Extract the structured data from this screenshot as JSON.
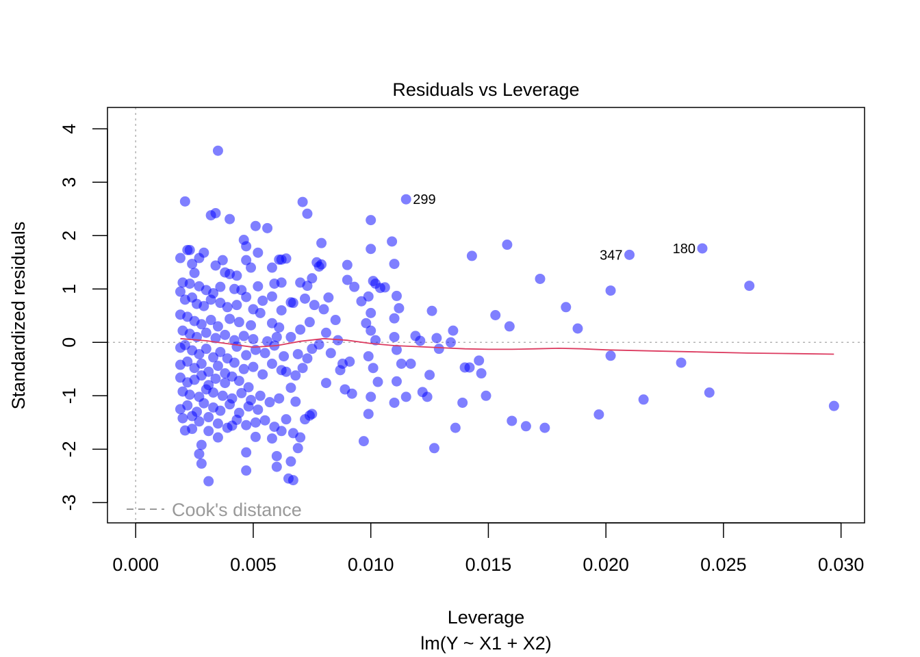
{
  "chart_data": {
    "type": "scatter",
    "title": "Residuals vs Leverage",
    "xlabel": "Leverage",
    "sublabel": "lm(Y ~ X1 + X2)",
    "ylabel": "Standardized residuals",
    "xlim": [
      -0.0012,
      0.031
    ],
    "ylim": [
      -3.38,
      4.4
    ],
    "xticks": [
      0.0,
      0.005,
      0.01,
      0.015,
      0.02,
      0.025,
      0.03
    ],
    "xtick_labels": [
      "0.000",
      "0.005",
      "0.010",
      "0.015",
      "0.020",
      "0.025",
      "0.030"
    ],
    "yticks": [
      -3,
      -2,
      -1,
      0,
      1,
      2,
      3,
      4
    ],
    "ytick_labels": [
      "-3",
      "-2",
      "-1",
      "0",
      "1",
      "2",
      "3",
      "4"
    ],
    "legend": {
      "label": "Cook's distance",
      "position": "bottom-left"
    },
    "reference_lines": {
      "horizontal_y": 0,
      "vertical_x": 0
    },
    "colors": {
      "points": "#0000ff",
      "smooth": "#dc3a5f",
      "reference": "#b3b3b3",
      "legend_text": "#999999"
    },
    "labeled_points": [
      {
        "label": "299",
        "x": 0.0115,
        "y": 2.68
      },
      {
        "label": "347",
        "x": 0.021,
        "y": 1.64
      },
      {
        "label": "180",
        "x": 0.0241,
        "y": 1.76
      }
    ],
    "smooth_line": [
      [
        0.0019,
        0.07
      ],
      [
        0.003,
        0.03
      ],
      [
        0.004,
        -0.03
      ],
      [
        0.005,
        -0.09
      ],
      [
        0.006,
        -0.06
      ],
      [
        0.007,
        0.02
      ],
      [
        0.008,
        0.07
      ],
      [
        0.009,
        0.04
      ],
      [
        0.01,
        -0.02
      ],
      [
        0.011,
        -0.06
      ],
      [
        0.012,
        -0.08
      ],
      [
        0.013,
        -0.1
      ],
      [
        0.014,
        -0.12
      ],
      [
        0.015,
        -0.13
      ],
      [
        0.016,
        -0.13
      ],
      [
        0.017,
        -0.12
      ],
      [
        0.018,
        -0.11
      ],
      [
        0.019,
        -0.12
      ],
      [
        0.02,
        -0.14
      ],
      [
        0.022,
        -0.16
      ],
      [
        0.024,
        -0.18
      ],
      [
        0.026,
        -0.2
      ],
      [
        0.028,
        -0.21
      ],
      [
        0.0297,
        -0.22
      ]
    ],
    "points": [
      [
        0.0021,
        2.64
      ],
      [
        0.0035,
        3.59
      ],
      [
        0.0032,
        2.38
      ],
      [
        0.0034,
        2.42
      ],
      [
        0.004,
        2.31
      ],
      [
        0.0051,
        2.18
      ],
      [
        0.0056,
        2.14
      ],
      [
        0.0046,
        1.92
      ],
      [
        0.0022,
        1.73
      ],
      [
        0.0023,
        1.73
      ],
      [
        0.0019,
        1.58
      ],
      [
        0.0027,
        1.58
      ],
      [
        0.0029,
        1.68
      ],
      [
        0.0024,
        1.47
      ],
      [
        0.0034,
        1.44
      ],
      [
        0.0037,
        1.54
      ],
      [
        0.0047,
        1.54
      ],
      [
        0.0049,
        1.4
      ],
      [
        0.0047,
        1.8
      ],
      [
        0.0052,
        1.68
      ],
      [
        0.0058,
        1.4
      ],
      [
        0.0061,
        1.55
      ],
      [
        0.0062,
        1.55
      ],
      [
        0.0064,
        1.57
      ],
      [
        0.0025,
        1.3
      ],
      [
        0.0038,
        1.31
      ],
      [
        0.004,
        1.28
      ],
      [
        0.0043,
        1.25
      ],
      [
        0.002,
        1.12
      ],
      [
        0.0023,
        1.1
      ],
      [
        0.0027,
        1.05
      ],
      [
        0.003,
        0.98
      ],
      [
        0.0033,
        0.92
      ],
      [
        0.0036,
        1.04
      ],
      [
        0.0042,
        1.0
      ],
      [
        0.0045,
        0.98
      ],
      [
        0.0052,
        1.05
      ],
      [
        0.0059,
        1.1
      ],
      [
        0.0062,
        1.12
      ],
      [
        0.007,
        1.12
      ],
      [
        0.0019,
        0.95
      ],
      [
        0.0021,
        0.8
      ],
      [
        0.0024,
        0.84
      ],
      [
        0.0026,
        0.72
      ],
      [
        0.0029,
        0.68
      ],
      [
        0.0032,
        0.8
      ],
      [
        0.0036,
        0.74
      ],
      [
        0.0039,
        0.66
      ],
      [
        0.0043,
        0.7
      ],
      [
        0.0047,
        0.85
      ],
      [
        0.005,
        0.62
      ],
      [
        0.0054,
        0.78
      ],
      [
        0.0058,
        0.86
      ],
      [
        0.0062,
        0.6
      ],
      [
        0.0066,
        0.75
      ],
      [
        0.0019,
        0.52
      ],
      [
        0.0022,
        0.48
      ],
      [
        0.0025,
        0.4
      ],
      [
        0.0028,
        0.34
      ],
      [
        0.0032,
        0.42
      ],
      [
        0.0035,
        0.3
      ],
      [
        0.004,
        0.44
      ],
      [
        0.0044,
        0.38
      ],
      [
        0.0049,
        0.32
      ],
      [
        0.0053,
        0.55
      ],
      [
        0.0058,
        0.36
      ],
      [
        0.0061,
        0.28
      ],
      [
        0.002,
        0.22
      ],
      [
        0.0023,
        0.16
      ],
      [
        0.0026,
        0.1
      ],
      [
        0.003,
        0.18
      ],
      [
        0.0034,
        0.08
      ],
      [
        0.0038,
        0.14
      ],
      [
        0.0042,
        0.04
      ],
      [
        0.0046,
        0.12
      ],
      [
        0.005,
        0.06
      ],
      [
        0.0056,
        0.02
      ],
      [
        0.006,
        0.1
      ],
      [
        0.0019,
        -0.1
      ],
      [
        0.0021,
        -0.05
      ],
      [
        0.0024,
        -0.15
      ],
      [
        0.0027,
        -0.22
      ],
      [
        0.003,
        -0.12
      ],
      [
        0.0033,
        -0.28
      ],
      [
        0.0036,
        -0.18
      ],
      [
        0.0039,
        -0.3
      ],
      [
        0.0043,
        -0.08
      ],
      [
        0.0047,
        -0.24
      ],
      [
        0.0051,
        -0.14
      ],
      [
        0.0055,
        -0.2
      ],
      [
        0.0059,
        -0.06
      ],
      [
        0.0063,
        -0.26
      ],
      [
        0.0019,
        -0.42
      ],
      [
        0.0022,
        -0.36
      ],
      [
        0.0025,
        -0.48
      ],
      [
        0.0028,
        -0.4
      ],
      [
        0.0031,
        -0.55
      ],
      [
        0.0035,
        -0.44
      ],
      [
        0.0038,
        -0.58
      ],
      [
        0.0042,
        -0.38
      ],
      [
        0.0046,
        -0.5
      ],
      [
        0.005,
        -0.46
      ],
      [
        0.0054,
        -0.6
      ],
      [
        0.0058,
        -0.4
      ],
      [
        0.0062,
        -0.52
      ],
      [
        0.0019,
        -0.66
      ],
      [
        0.0022,
        -0.75
      ],
      [
        0.0025,
        -0.7
      ],
      [
        0.0028,
        -0.62
      ],
      [
        0.0031,
        -0.8
      ],
      [
        0.0034,
        -0.68
      ],
      [
        0.0038,
        -0.76
      ],
      [
        0.0041,
        -0.64
      ],
      [
        0.0044,
        -0.72
      ],
      [
        0.0048,
        -0.84
      ],
      [
        0.002,
        -0.92
      ],
      [
        0.0023,
        -0.98
      ],
      [
        0.0027,
        -1.02
      ],
      [
        0.003,
        -0.88
      ],
      [
        0.0033,
        -0.94
      ],
      [
        0.0037,
        -1.0
      ],
      [
        0.0041,
        -1.05
      ],
      [
        0.0045,
        -0.95
      ],
      [
        0.0049,
        -1.08
      ],
      [
        0.0053,
        -1.0
      ],
      [
        0.0057,
        -1.12
      ],
      [
        0.0061,
        -1.05
      ],
      [
        0.0019,
        -1.25
      ],
      [
        0.0022,
        -1.18
      ],
      [
        0.0026,
        -1.3
      ],
      [
        0.0029,
        -1.14
      ],
      [
        0.0033,
        -1.22
      ],
      [
        0.0036,
        -1.28
      ],
      [
        0.004,
        -1.16
      ],
      [
        0.0044,
        -1.32
      ],
      [
        0.0048,
        -1.2
      ],
      [
        0.0052,
        -1.26
      ],
      [
        0.002,
        -1.42
      ],
      [
        0.0024,
        -1.38
      ],
      [
        0.0027,
        -1.48
      ],
      [
        0.0031,
        -1.4
      ],
      [
        0.0035,
        -1.52
      ],
      [
        0.0039,
        -1.6
      ],
      [
        0.0043,
        -1.45
      ],
      [
        0.0047,
        -1.55
      ],
      [
        0.0051,
        -1.5
      ],
      [
        0.0055,
        -1.46
      ],
      [
        0.0059,
        -1.58
      ],
      [
        0.0021,
        -1.65
      ],
      [
        0.0024,
        -1.62
      ],
      [
        0.0031,
        -1.66
      ],
      [
        0.0035,
        -1.78
      ],
      [
        0.0041,
        -1.56
      ],
      [
        0.0051,
        -1.77
      ],
      [
        0.0058,
        -1.8
      ],
      [
        0.0062,
        -1.66
      ],
      [
        0.0028,
        -1.92
      ],
      [
        0.0027,
        -2.09
      ],
      [
        0.0028,
        -2.27
      ],
      [
        0.0031,
        -2.6
      ],
      [
        0.0047,
        -2.06
      ],
      [
        0.0047,
        -2.4
      ],
      [
        0.006,
        -2.13
      ],
      [
        0.006,
        -2.33
      ],
      [
        0.0065,
        -2.55
      ],
      [
        0.0067,
        -2.58
      ],
      [
        0.0066,
        -2.23
      ],
      [
        0.0069,
        -1.98
      ],
      [
        0.0067,
        -1.7
      ],
      [
        0.0064,
        -1.44
      ],
      [
        0.007,
        -1.78
      ],
      [
        0.0072,
        -1.44
      ],
      [
        0.0075,
        -1.34
      ],
      [
        0.0074,
        -1.37
      ],
      [
        0.0068,
        -1.11
      ],
      [
        0.0066,
        -0.85
      ],
      [
        0.0064,
        -0.55
      ],
      [
        0.0068,
        -0.62
      ],
      [
        0.0071,
        -0.48
      ],
      [
        0.0073,
        -0.3
      ],
      [
        0.0069,
        -0.22
      ],
      [
        0.0075,
        -0.12
      ],
      [
        0.0078,
        -0.04
      ],
      [
        0.0066,
        0.1
      ],
      [
        0.007,
        0.24
      ],
      [
        0.0074,
        0.38
      ],
      [
        0.0067,
        0.74
      ],
      [
        0.0072,
        0.82
      ],
      [
        0.0076,
        0.7
      ],
      [
        0.0073,
        1.06
      ],
      [
        0.0075,
        1.2
      ],
      [
        0.0077,
        1.5
      ],
      [
        0.0078,
        1.42
      ],
      [
        0.0079,
        1.86
      ],
      [
        0.0071,
        2.63
      ],
      [
        0.0073,
        2.41
      ],
      [
        0.0079,
        1.46
      ],
      [
        0.0082,
        0.84
      ],
      [
        0.008,
        0.62
      ],
      [
        0.0085,
        0.42
      ],
      [
        0.0081,
        0.18
      ],
      [
        0.0086,
        0.04
      ],
      [
        0.0083,
        -0.2
      ],
      [
        0.0087,
        -0.52
      ],
      [
        0.0081,
        -0.76
      ],
      [
        0.0089,
        -0.88
      ],
      [
        0.0092,
        -0.96
      ],
      [
        0.0088,
        -0.4
      ],
      [
        0.0091,
        -0.36
      ],
      [
        0.009,
        1.17
      ],
      [
        0.009,
        1.45
      ],
      [
        0.0093,
        1.04
      ],
      [
        0.0096,
        0.77
      ],
      [
        0.0099,
        0.86
      ],
      [
        0.01,
        0.55
      ],
      [
        0.0098,
        0.36
      ],
      [
        0.01,
        0.22
      ],
      [
        0.0102,
        0.04
      ],
      [
        0.0099,
        -0.26
      ],
      [
        0.0101,
        -0.48
      ],
      [
        0.0103,
        -0.74
      ],
      [
        0.01,
        -1.02
      ],
      [
        0.0099,
        -1.34
      ],
      [
        0.0097,
        -1.85
      ],
      [
        0.01,
        1.75
      ],
      [
        0.01,
        2.29
      ],
      [
        0.0101,
        1.15
      ],
      [
        0.0102,
        1.1
      ],
      [
        0.0104,
        1.02
      ],
      [
        0.0106,
        1.03
      ],
      [
        0.0109,
        1.89
      ],
      [
        0.011,
        1.47
      ],
      [
        0.0111,
        0.87
      ],
      [
        0.0112,
        0.64
      ],
      [
        0.011,
        0.45
      ],
      [
        0.011,
        0.1
      ],
      [
        0.0111,
        -0.14
      ],
      [
        0.0113,
        -0.4
      ],
      [
        0.0111,
        -0.73
      ],
      [
        0.011,
        -1.13
      ],
      [
        0.0115,
        -1.02
      ],
      [
        0.0115,
        2.68
      ],
      [
        0.0117,
        -0.4
      ],
      [
        0.0119,
        0.12
      ],
      [
        0.0121,
        0.03
      ],
      [
        0.0122,
        -0.93
      ],
      [
        0.0124,
        -1.02
      ],
      [
        0.0125,
        -0.61
      ],
      [
        0.0126,
        0.59
      ],
      [
        0.0127,
        -1.98
      ],
      [
        0.0128,
        0.08
      ],
      [
        0.0129,
        -0.12
      ],
      [
        0.0134,
        0.0
      ],
      [
        0.0135,
        0.22
      ],
      [
        0.0136,
        -1.6
      ],
      [
        0.0139,
        -1.13
      ],
      [
        0.014,
        -0.47
      ],
      [
        0.0142,
        -0.47
      ],
      [
        0.0143,
        1.62
      ],
      [
        0.0146,
        -0.34
      ],
      [
        0.0147,
        -0.58
      ],
      [
        0.0149,
        -1.0
      ],
      [
        0.0153,
        0.51
      ],
      [
        0.0158,
        1.83
      ],
      [
        0.0159,
        0.3
      ],
      [
        0.016,
        -1.47
      ],
      [
        0.0166,
        -1.57
      ],
      [
        0.0172,
        1.19
      ],
      [
        0.0174,
        -1.6
      ],
      [
        0.0183,
        0.66
      ],
      [
        0.0188,
        0.26
      ],
      [
        0.0197,
        -1.35
      ],
      [
        0.0202,
        0.97
      ],
      [
        0.0202,
        -0.25
      ],
      [
        0.021,
        1.64
      ],
      [
        0.0216,
        -1.07
      ],
      [
        0.0232,
        -0.38
      ],
      [
        0.0241,
        1.76
      ],
      [
        0.0244,
        -0.94
      ],
      [
        0.0261,
        1.06
      ],
      [
        0.0297,
        -1.19
      ]
    ]
  }
}
